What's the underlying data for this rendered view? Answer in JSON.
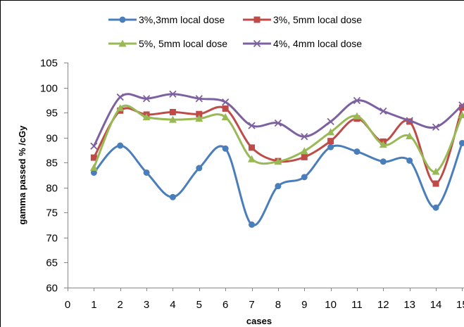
{
  "chart_data": {
    "type": "line",
    "xlabel": "cases",
    "ylabel": "gamma passed % /cGy",
    "xlim": [
      0,
      15
    ],
    "ylim": [
      60,
      105
    ],
    "x_ticks": [
      0,
      1,
      2,
      3,
      4,
      5,
      6,
      7,
      8,
      9,
      10,
      11,
      12,
      13,
      14,
      15
    ],
    "y_ticks": [
      60,
      65,
      70,
      75,
      80,
      85,
      90,
      95,
      100,
      105
    ],
    "grid": false,
    "smoothed": true,
    "legend_position": "top",
    "x": [
      1,
      2,
      3,
      4,
      5,
      6,
      7,
      8,
      9,
      10,
      11,
      12,
      13,
      14,
      15
    ],
    "series": [
      {
        "name": "3%,3mm local dose",
        "color": "#4a7ebb",
        "marker": "circle",
        "values": [
          83.0,
          88.4,
          83.0,
          78.1,
          83.9,
          87.8,
          72.6,
          80.3,
          82.1,
          88.1,
          87.2,
          85.2,
          85.4,
          76.0,
          88.9
        ]
      },
      {
        "name": "3%, 5mm local dose",
        "color": "#be4b48",
        "marker": "square",
        "values": [
          86.0,
          95.4,
          94.6,
          95.1,
          94.7,
          95.8,
          88.0,
          85.3,
          86.1,
          89.3,
          93.8,
          89.2,
          93.2,
          80.8,
          96.0
        ]
      },
      {
        "name": "5%, 5mm local dose",
        "color": "#98b954",
        "marker": "triangle",
        "values": [
          84.0,
          95.9,
          94.1,
          93.6,
          93.8,
          94.1,
          85.7,
          85.2,
          87.3,
          91.1,
          94.3,
          88.6,
          90.3,
          83.2,
          94.5
        ]
      },
      {
        "name": "4%, 4mm local dose",
        "color": "#7d60a0",
        "marker": "x",
        "values": [
          88.3,
          98.1,
          97.8,
          98.7,
          97.8,
          97.1,
          92.4,
          92.9,
          90.2,
          93.2,
          97.4,
          95.3,
          93.4,
          92.1,
          96.5
        ]
      }
    ]
  }
}
